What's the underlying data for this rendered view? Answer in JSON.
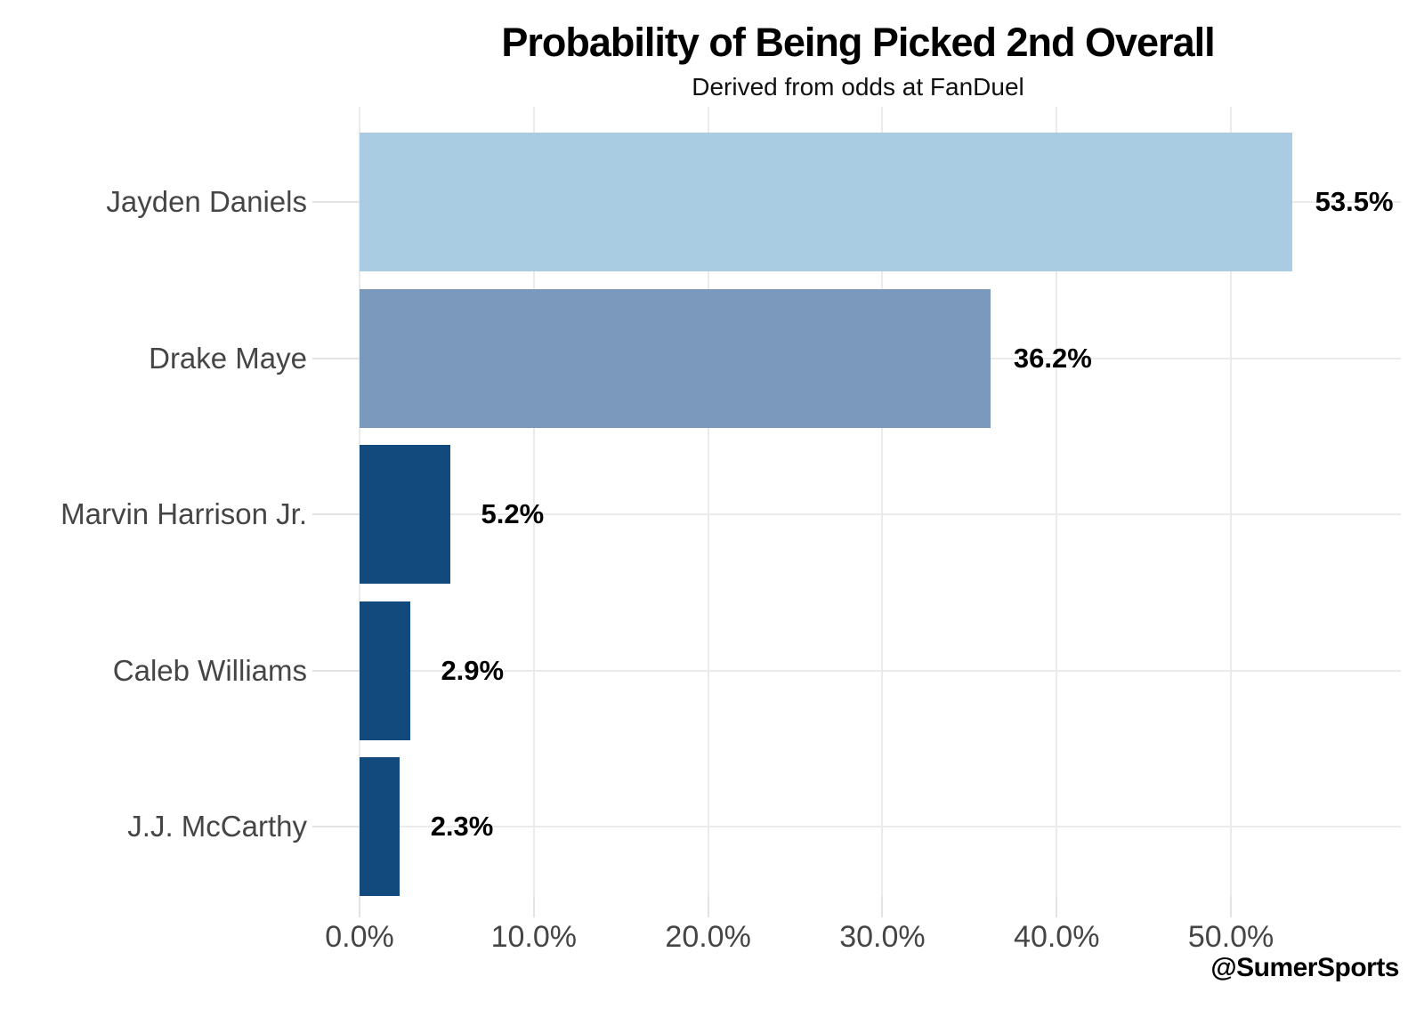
{
  "chart_data": {
    "type": "bar",
    "orientation": "horizontal",
    "title": "Probability of Being Picked 2nd Overall",
    "subtitle": "Derived from odds at FanDuel",
    "categories": [
      "Jayden Daniels",
      "Drake Maye",
      "Marvin Harrison Jr.",
      "Caleb Williams",
      "J.J. McCarthy"
    ],
    "values": [
      53.5,
      36.2,
      5.2,
      2.9,
      2.3
    ],
    "value_labels": [
      "53.5%",
      "36.2%",
      "5.2%",
      "2.9%",
      "2.3%"
    ],
    "bar_colors": [
      "#a9cce3",
      "#7a99bc",
      "#134a7e",
      "#134a7e",
      "#134a7e"
    ],
    "x_ticks": [
      {
        "value": 0,
        "label": "0.0%"
      },
      {
        "value": 10,
        "label": "10.0%"
      },
      {
        "value": 20,
        "label": "20.0%"
      },
      {
        "value": 30,
        "label": "30.0%"
      },
      {
        "value": 40,
        "label": "40.0%"
      },
      {
        "value": 50,
        "label": "50.0%"
      }
    ],
    "xlim": [
      0,
      59.75
    ],
    "xlabel": "",
    "ylabel": "",
    "grid": true,
    "legend": false,
    "colors": {
      "gridline": "#ebebeb",
      "tick": "#e3e3e3",
      "axis_text": "#454545",
      "title_text": "#000000"
    }
  },
  "watermark": "@SumerSports"
}
